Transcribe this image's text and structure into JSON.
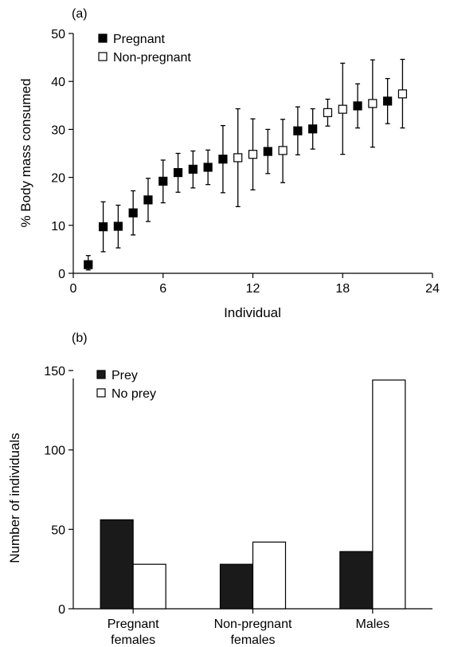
{
  "chart_data": [
    {
      "type": "scatter",
      "panel_label": "(a)",
      "xlabel": "Individual",
      "ylabel": "% Body mass consumed",
      "xlim": [
        0,
        24
      ],
      "ylim": [
        0,
        50
      ],
      "xticks": [
        0,
        6,
        12,
        18,
        24
      ],
      "yticks": [
        0,
        10,
        20,
        30,
        40,
        50
      ],
      "legend_position": "top-left",
      "series": [
        {
          "name": "Pregnant",
          "marker": "filled-square",
          "color": "#000000",
          "points": [
            {
              "x": 1,
              "y": 1.8,
              "err_low": 0.7,
              "err_high": 3.7
            },
            {
              "x": 2,
              "y": 9.7,
              "err_low": 4.5,
              "err_high": 14.9
            },
            {
              "x": 3,
              "y": 9.8,
              "err_low": 5.3,
              "err_high": 14.2
            },
            {
              "x": 4,
              "y": 12.6,
              "err_low": 8.0,
              "err_high": 17.2
            },
            {
              "x": 5,
              "y": 15.3,
              "err_low": 10.8,
              "err_high": 19.8
            },
            {
              "x": 6,
              "y": 19.2,
              "err_low": 14.7,
              "err_high": 23.6
            },
            {
              "x": 7,
              "y": 21.0,
              "err_low": 16.9,
              "err_high": 25.0
            },
            {
              "x": 8,
              "y": 21.7,
              "err_low": 17.8,
              "err_high": 25.5
            },
            {
              "x": 9,
              "y": 22.1,
              "err_low": 18.5,
              "err_high": 25.7
            },
            {
              "x": 10,
              "y": 23.8,
              "err_low": 16.8,
              "err_high": 30.8
            },
            {
              "x": 13,
              "y": 25.4,
              "err_low": 20.8,
              "err_high": 30.0
            },
            {
              "x": 15,
              "y": 29.7,
              "err_low": 24.7,
              "err_high": 34.7
            },
            {
              "x": 16,
              "y": 30.1,
              "err_low": 25.9,
              "err_high": 34.3
            },
            {
              "x": 19,
              "y": 34.9,
              "err_low": 30.3,
              "err_high": 39.5
            },
            {
              "x": 21,
              "y": 35.9,
              "err_low": 31.2,
              "err_high": 40.6
            }
          ]
        },
        {
          "name": "Non-pregnant",
          "marker": "open-square",
          "color": "#000000",
          "points": [
            {
              "x": 11,
              "y": 24.1,
              "err_low": 13.9,
              "err_high": 34.3
            },
            {
              "x": 12,
              "y": 24.8,
              "err_low": 17.4,
              "err_high": 32.2
            },
            {
              "x": 14,
              "y": 25.6,
              "err_low": 18.9,
              "err_high": 32.1
            },
            {
              "x": 17,
              "y": 33.5,
              "err_low": 30.7,
              "err_high": 36.3
            },
            {
              "x": 18,
              "y": 34.2,
              "err_low": 24.8,
              "err_high": 43.8
            },
            {
              "x": 20,
              "y": 35.4,
              "err_low": 26.3,
              "err_high": 44.5
            },
            {
              "x": 22,
              "y": 37.4,
              "err_low": 30.3,
              "err_high": 44.6
            }
          ]
        }
      ]
    },
    {
      "type": "bar",
      "panel_label": "(b)",
      "xlabel": "",
      "ylabel": "Number of individuals",
      "ylim": [
        0,
        150
      ],
      "yticks": [
        0,
        50,
        100,
        150
      ],
      "legend_position": "top-left",
      "categories": [
        {
          "line1": "Pregnant",
          "line2": "females"
        },
        {
          "line1": "Non-pregnant",
          "line2": "females"
        },
        {
          "line1": "Males",
          "line2": ""
        }
      ],
      "series": [
        {
          "name": "Prey",
          "fill": "#1a1a1a",
          "values": [
            56,
            28,
            36
          ]
        },
        {
          "name": "No prey",
          "fill": "#ffffff",
          "values": [
            28,
            42,
            144
          ]
        }
      ]
    }
  ]
}
